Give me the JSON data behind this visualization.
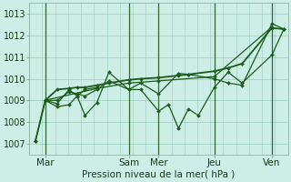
{
  "title": "Pression niveau de la mer( hPa )",
  "bg_color": "#cceee6",
  "grid_color": "#99ccbb",
  "line_color": "#1a5c1a",
  "vline_color": "#336633",
  "ylim": [
    1006.5,
    1013.5
  ],
  "yticks": [
    1007,
    1008,
    1009,
    1010,
    1011,
    1012,
    1013
  ],
  "xlim": [
    0,
    130
  ],
  "x_day_labels": [
    "Mar",
    "Sam",
    "Mer",
    "Jeu",
    "Ven"
  ],
  "x_day_positions": [
    8,
    50,
    65,
    93,
    122
  ],
  "x_vlines": [
    8,
    50,
    65,
    93,
    122
  ],
  "series": [
    {
      "xs": [
        3,
        8,
        14,
        20,
        24,
        28,
        34
      ],
      "ys": [
        1007.1,
        1009.0,
        1008.7,
        1008.8,
        1009.2,
        1009.5,
        1009.6
      ]
    },
    {
      "xs": [
        3,
        8,
        14,
        20,
        24,
        28,
        34,
        40,
        50,
        56,
        65,
        75,
        80,
        93,
        100,
        107,
        122,
        128
      ],
      "ys": [
        1007.1,
        1009.0,
        1009.5,
        1009.55,
        1009.6,
        1009.6,
        1009.7,
        1009.8,
        1009.95,
        1010.0,
        1010.05,
        1010.15,
        1010.2,
        1010.35,
        1010.5,
        1010.7,
        1012.35,
        1012.3
      ]
    },
    {
      "xs": [
        8,
        14,
        20,
        24,
        28,
        34,
        40,
        50,
        56,
        65,
        70,
        75,
        80,
        85,
        93,
        100,
        107,
        122,
        128
      ],
      "ys": [
        1009.0,
        1008.85,
        1009.5,
        1009.2,
        1008.3,
        1008.9,
        1010.3,
        1009.5,
        1009.5,
        1008.5,
        1008.8,
        1007.7,
        1008.6,
        1008.3,
        1009.6,
        1010.3,
        1009.8,
        1011.1,
        1012.3
      ]
    },
    {
      "xs": [
        8,
        14,
        20,
        24,
        28,
        34,
        40,
        50,
        56,
        65,
        75,
        80,
        93,
        100,
        107,
        122,
        128
      ],
      "ys": [
        1009.0,
        1009.0,
        1009.4,
        1009.3,
        1009.2,
        1009.5,
        1009.9,
        1009.5,
        1009.8,
        1009.3,
        1010.25,
        1010.2,
        1010.0,
        1009.8,
        1009.7,
        1012.55,
        1012.3
      ]
    },
    {
      "xs": [
        8,
        34,
        50,
        65,
        93,
        122
      ],
      "ys": [
        1009.0,
        1009.55,
        1009.8,
        1009.9,
        1010.1,
        1012.4
      ]
    }
  ],
  "xlabel_fontsize": 7.5,
  "ylabel_fontsize": 7,
  "title_fontsize": 7.5
}
